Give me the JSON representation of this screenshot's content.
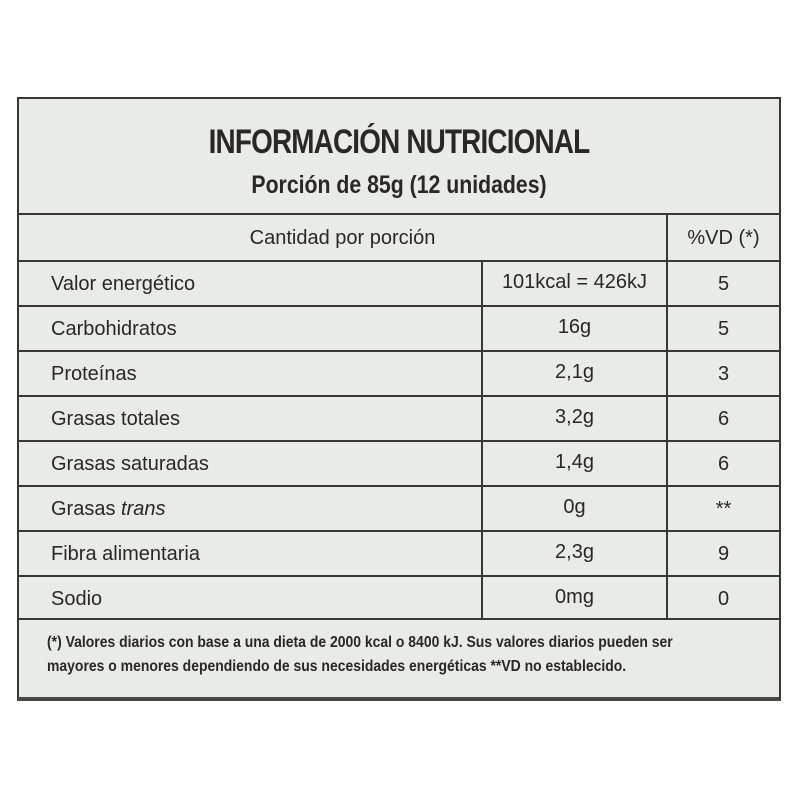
{
  "title": "INFORMACIÓN NUTRICIONAL",
  "subtitle": "Porción de 85g (12 unidades)",
  "table": {
    "header_amount": "Cantidad por porción",
    "header_dv": "%VD (*)",
    "rows": [
      {
        "nutrient": "Valor energético",
        "amount": "101kcal = 426kJ",
        "dv": "5"
      },
      {
        "nutrient": "Carbohidratos",
        "amount": "16g",
        "dv": "5"
      },
      {
        "nutrient": "Proteínas",
        "amount": "2,1g",
        "dv": "3"
      },
      {
        "nutrient": "Grasas totales",
        "amount": "3,2g",
        "dv": "6"
      },
      {
        "nutrient": "Grasas saturadas",
        "amount": "1,4g",
        "dv": "6"
      },
      {
        "nutrient": "Grasas",
        "nutrient_italic": "trans",
        "amount": "0g",
        "dv": "**"
      },
      {
        "nutrient": "Fibra alimentaria",
        "amount": "2,3g",
        "dv": "9"
      },
      {
        "nutrient": "Sodio",
        "amount": "0mg",
        "dv": "0"
      }
    ]
  },
  "footnote_line1": "(*) Valores diarios con base a una dieta de 2000 kcal o 8400 kJ. Sus valores diarios pueden ser",
  "footnote_line2": "mayores o menores dependiendo de sus necesidades energéticas **VD no establecido."
}
